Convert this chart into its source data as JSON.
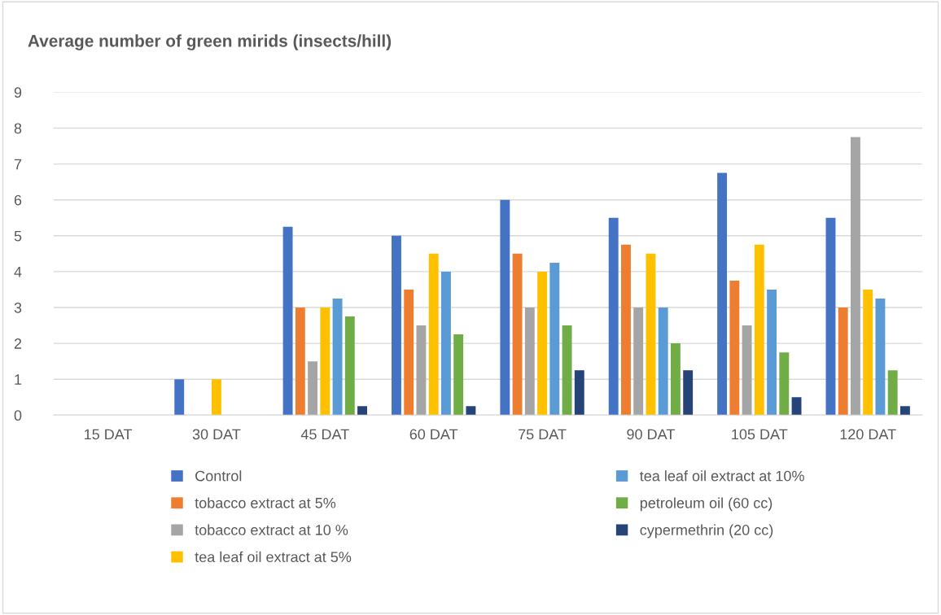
{
  "chart_data": {
    "type": "bar",
    "title": "Average number of green mirids (insects/hill)",
    "categories": [
      "15 DAT",
      "30 DAT",
      "45 DAT",
      "60 DAT",
      "75 DAT",
      "90 DAT",
      "105 DAT",
      "120 DAT"
    ],
    "series": [
      {
        "name": "Control",
        "color": "#4472c4",
        "values": [
          0,
          1,
          5.25,
          5,
          6,
          5.5,
          6.75,
          5.5
        ]
      },
      {
        "name": "tobacco extract at 5%",
        "color": "#ed7d31",
        "values": [
          0,
          0,
          3,
          3.5,
          4.5,
          4.75,
          3.75,
          3
        ]
      },
      {
        "name": "tobacco extract at 10 %",
        "color": "#a5a5a5",
        "values": [
          0,
          0,
          1.5,
          2.5,
          3,
          3,
          2.5,
          7.75
        ]
      },
      {
        "name": "tea leaf oil extract at 5%",
        "color": "#ffc000",
        "values": [
          0,
          1,
          3,
          4.5,
          4,
          4.5,
          4.75,
          3.5
        ]
      },
      {
        "name": "tea leaf oil extract at 10%",
        "color": "#5b9bd5",
        "values": [
          0,
          0,
          3.25,
          4,
          4.25,
          3,
          3.5,
          3.25
        ]
      },
      {
        "name": "petroleum oil (60 cc)",
        "color": "#70ad47",
        "values": [
          0,
          0,
          2.75,
          2.25,
          2.5,
          2,
          1.75,
          1.25
        ]
      },
      {
        "name": "cypermethrin (20 cc)",
        "color": "#264478",
        "values": [
          0,
          0,
          0.25,
          0.25,
          1.25,
          1.25,
          0.5,
          0.25
        ]
      }
    ],
    "ylim": [
      0,
      9
    ],
    "yticks": [
      0,
      1,
      2,
      3,
      4,
      5,
      6,
      7,
      8,
      9
    ],
    "grid": "y",
    "legend": "bottom"
  }
}
